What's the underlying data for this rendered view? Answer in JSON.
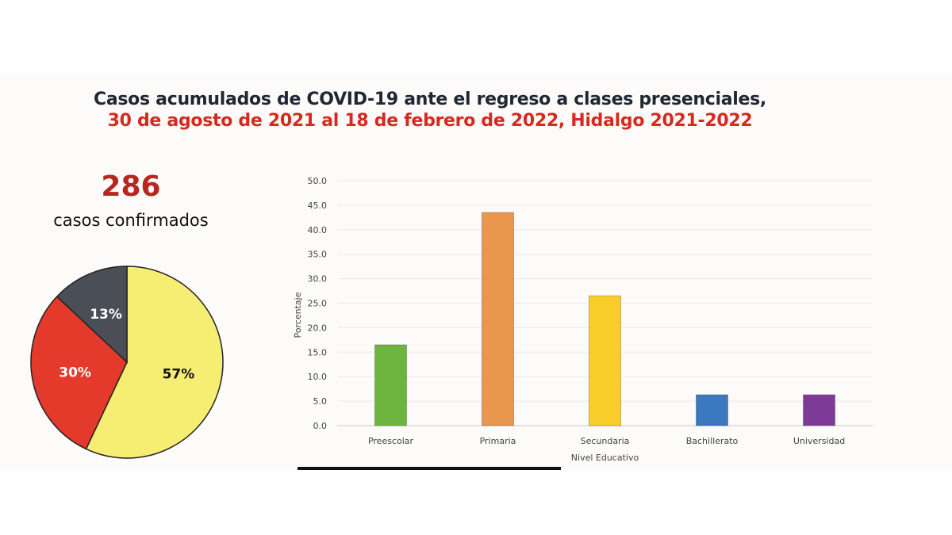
{
  "title": {
    "line1": "Casos acumulados de COVID-19 ante el regreso a clases presenciales,",
    "line2": "30 de agosto de 2021 al 18 de febrero de 2022, Hidalgo 2021-2022"
  },
  "summary": {
    "count": "286",
    "count_label": "casos confirmados"
  },
  "chart_data": [
    {
      "type": "pie",
      "slices": [
        {
          "label": "57%",
          "value": 57,
          "color": "#f6ed73"
        },
        {
          "label": "30%",
          "value": 30,
          "color": "#e33a2c"
        },
        {
          "label": "13%",
          "value": 13,
          "color": "#4a4f57"
        }
      ],
      "start": "top",
      "direction": "clockwise"
    },
    {
      "type": "bar",
      "categories": [
        "Preescolar",
        "Primaria",
        "Secundaria",
        "Bachillerato",
        "Universidad"
      ],
      "values": [
        16.5,
        43.5,
        26.5,
        6.3,
        6.3
      ],
      "colors": [
        "#6eb53f",
        "#e9974f",
        "#f9cd2a",
        "#3b78c0",
        "#7e3a97"
      ],
      "xlabel": "Nivel Educativo",
      "ylabel": "Porcentaje",
      "ylim": [
        0,
        50
      ],
      "yticks": [
        "0.0",
        "5.0",
        "10.0",
        "15.0",
        "20.0",
        "25.0",
        "30.0",
        "35.0",
        "40.0",
        "45.0",
        "50.0"
      ],
      "grid": true
    }
  ]
}
